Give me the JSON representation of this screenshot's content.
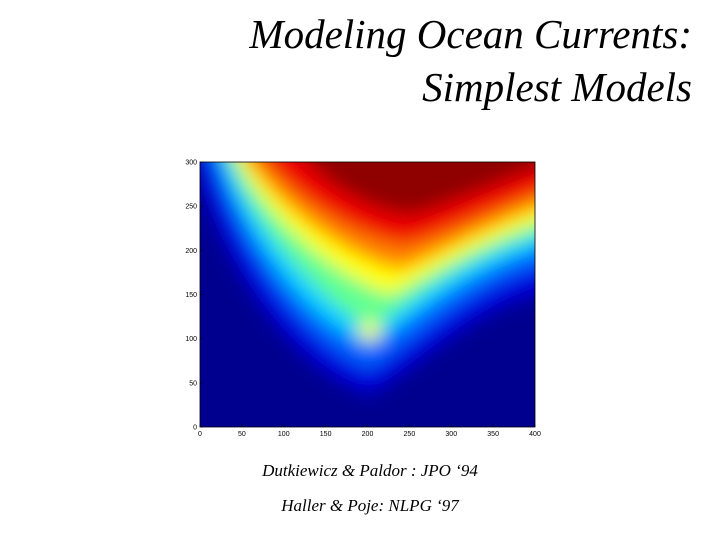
{
  "header": {
    "title_line1": "Modeling Ocean Currents:",
    "title_line2": "Simplest Models"
  },
  "figure": {
    "xlim": [
      0,
      400
    ],
    "ylim": [
      0,
      300
    ],
    "xticks": [
      0,
      50,
      100,
      150,
      200,
      250,
      300,
      350,
      400
    ],
    "yticks": [
      0,
      50,
      100,
      150,
      200,
      250,
      300
    ]
  },
  "references": [
    "Dutkiewicz & Paldor : JPO ‘94",
    "Haller & Poje: NLPG ‘97"
  ]
}
